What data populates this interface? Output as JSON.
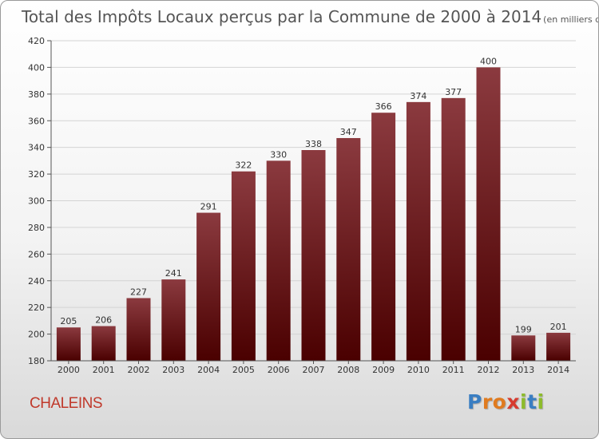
{
  "chart_data": {
    "type": "bar",
    "title": "Total des Impôts Locaux perçus par la Commune de 2000 à 2014",
    "unit_note": "(en milliers d'€)",
    "categories": [
      "2000",
      "2001",
      "2002",
      "2003",
      "2004",
      "2005",
      "2006",
      "2007",
      "2008",
      "2009",
      "2010",
      "2011",
      "2012",
      "2013",
      "2014"
    ],
    "values": [
      205,
      206,
      227,
      241,
      291,
      322,
      330,
      338,
      347,
      366,
      374,
      377,
      400,
      199,
      201
    ],
    "ylim": [
      180,
      420
    ],
    "yticks": [
      180,
      200,
      220,
      240,
      260,
      280,
      300,
      320,
      340,
      360,
      380,
      400,
      420
    ],
    "xlabel": "",
    "ylabel": "",
    "grid": true,
    "bar_color_top": "#8b3a3f",
    "bar_color_bottom": "#4a0000"
  },
  "commune": "CHALEINS",
  "brand": [
    "P",
    "r",
    "o",
    "x",
    "i",
    "t",
    "i"
  ]
}
